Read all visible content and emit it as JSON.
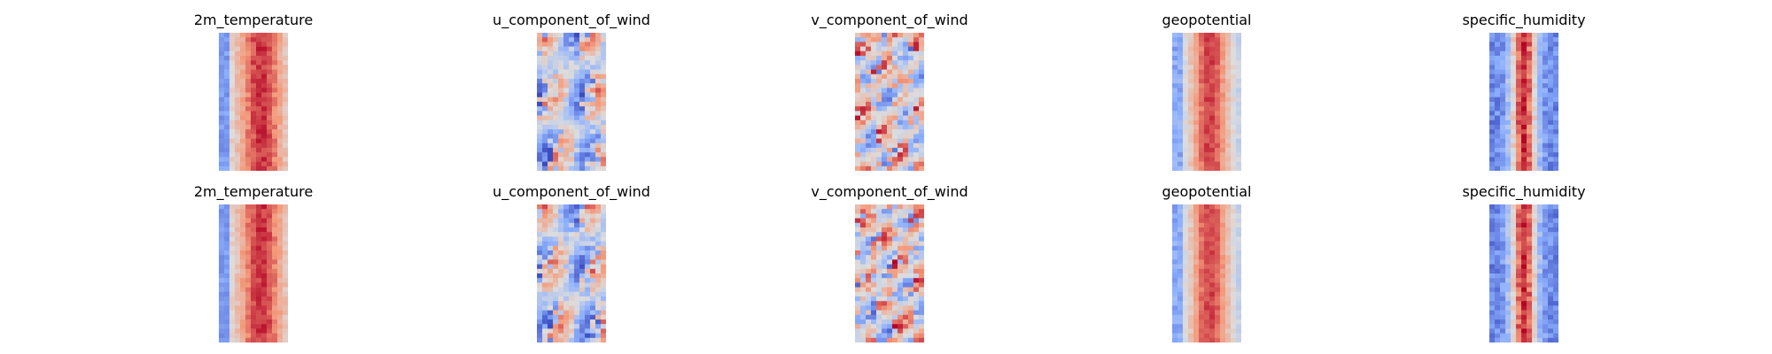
{
  "chart_data": {
    "type": "heatmap",
    "colormap": "coolwarm",
    "colors": {
      "low": "#3b4cc0",
      "mid": "#dddddd",
      "high": "#b40426"
    },
    "axes_visible": false,
    "layout": "2 rows x 5 columns",
    "panels": [
      {
        "title": "2m_temperature",
        "row": 1,
        "col": 1,
        "pattern": "temperature"
      },
      {
        "title": "u_component_of_wind",
        "row": 1,
        "col": 2,
        "pattern": "u_wind"
      },
      {
        "title": "v_component_of_wind",
        "row": 1,
        "col": 3,
        "pattern": "v_wind"
      },
      {
        "title": "geopotential",
        "row": 1,
        "col": 4,
        "pattern": "geopotential"
      },
      {
        "title": "specific_humidity",
        "row": 1,
        "col": 5,
        "pattern": "humidity"
      },
      {
        "title": "2m_temperature",
        "row": 2,
        "col": 1,
        "pattern": "temperature"
      },
      {
        "title": "u_component_of_wind",
        "row": 2,
        "col": 2,
        "pattern": "u_wind"
      },
      {
        "title": "v_component_of_wind",
        "row": 2,
        "col": 3,
        "pattern": "v_wind"
      },
      {
        "title": "geopotential",
        "row": 2,
        "col": 4,
        "pattern": "geopotential"
      },
      {
        "title": "specific_humidity",
        "row": 2,
        "col": 5,
        "pattern": "humidity"
      }
    ]
  }
}
